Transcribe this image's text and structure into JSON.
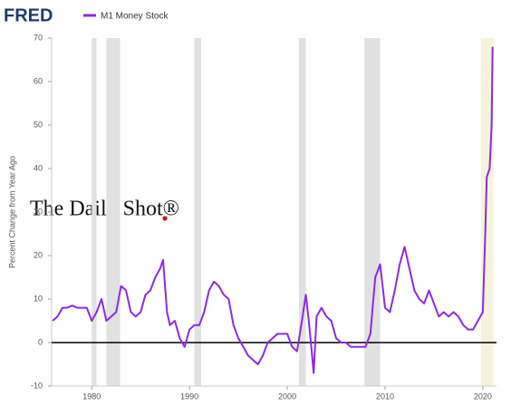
{
  "chart_data": {
    "type": "line",
    "logo": "FRED",
    "watermark": "The Daily Shot®",
    "ylabel": "Percent Change from Year Ago",
    "x": [
      1976,
      1976.5,
      1977,
      1977.5,
      1978,
      1978.5,
      1979,
      1979.5,
      1980,
      1980.5,
      1981,
      1981.5,
      1982,
      1982.5,
      1983,
      1983.5,
      1984,
      1984.5,
      1985,
      1985.5,
      1986,
      1986.5,
      1987,
      1987.3,
      1987.7,
      1988,
      1988.5,
      1989,
      1989.5,
      1990,
      1990.5,
      1991,
      1991.5,
      1992,
      1992.5,
      1993,
      1993.5,
      1994,
      1994.5,
      1995,
      1995.5,
      1996,
      1996.5,
      1997,
      1997.5,
      1998,
      1998.5,
      1999,
      1999.5,
      2000,
      2000.5,
      2001,
      2001.5,
      2001.9,
      2002.2,
      2002.5,
      2002.7,
      2003,
      2003.5,
      2004,
      2004.5,
      2005,
      2005.5,
      2006,
      2006.5,
      2007,
      2007.5,
      2008,
      2008.5,
      2009,
      2009.5,
      2010,
      2010.5,
      2011,
      2011.5,
      2012,
      2012.5,
      2013,
      2013.5,
      2014,
      2014.5,
      2015,
      2015.5,
      2016,
      2016.5,
      2017,
      2017.5,
      2018,
      2018.5,
      2019,
      2019.5,
      2020,
      2020.25,
      2020.4,
      2020.7,
      2020.9,
      2021
    ],
    "series": [
      {
        "name": "M1 Money Stock",
        "color": "#8a2be2",
        "values": [
          5,
          6,
          8,
          8,
          8.5,
          8,
          8,
          8,
          5,
          7,
          10,
          5,
          6,
          7,
          13,
          12,
          7,
          6,
          7,
          11,
          12,
          15,
          17,
          19,
          7,
          4,
          5,
          1,
          -1,
          3,
          4,
          4,
          7,
          12,
          14,
          13,
          11,
          10,
          4,
          1,
          -1,
          -3,
          -4,
          -5,
          -3,
          0,
          1,
          2,
          2,
          2,
          -1,
          -2,
          5,
          11,
          5,
          -2,
          -7,
          6,
          8,
          6,
          5,
          1,
          0,
          0,
          -1,
          -1,
          -1,
          -1,
          2,
          15,
          18,
          8,
          7,
          12,
          18,
          22,
          17,
          12,
          10,
          9,
          12,
          9,
          6,
          7,
          6,
          7,
          6,
          4,
          3,
          3,
          5,
          7,
          25,
          38,
          40,
          50,
          68
        ]
      }
    ],
    "recessions": [
      [
        1980,
        1980.5
      ],
      [
        1981.5,
        1982.9
      ],
      [
        1990.5,
        1991.2
      ],
      [
        2001.2,
        2001.9
      ],
      [
        2007.9,
        2009.5
      ]
    ],
    "highlight": [
      2019.8,
      2021.1
    ],
    "xlim": [
      1975.9,
      2021.4
    ],
    "xticks": [
      1980,
      1990,
      2000,
      2010,
      2020
    ],
    "ylim": [
      -10,
      70
    ],
    "yticks": [
      -10,
      0,
      10,
      20,
      30,
      40,
      50,
      60,
      70
    ],
    "zero_line": true
  }
}
